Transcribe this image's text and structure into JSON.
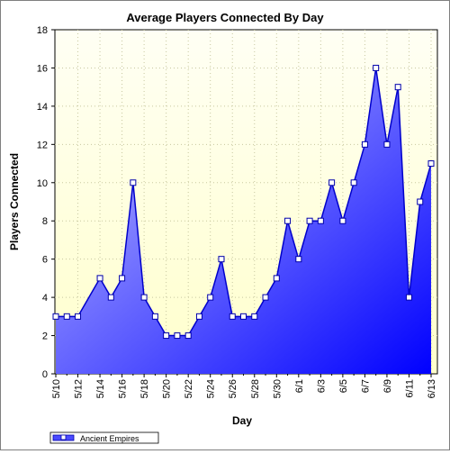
{
  "chart_data": {
    "type": "area",
    "title": "Average Players Connected By Day",
    "xlabel": "Day",
    "ylabel": "Players Connected",
    "ylim": [
      0,
      18
    ],
    "yticks": [
      0,
      2,
      4,
      6,
      8,
      10,
      12,
      14,
      16,
      18
    ],
    "grid": true,
    "legend_position": "bottom-left",
    "x": [
      "5/10",
      "5/11",
      "5/12",
      "5/13",
      "5/14",
      "5/15",
      "5/16",
      "5/17",
      "5/18",
      "5/19",
      "5/20",
      "5/21",
      "5/22",
      "5/23",
      "5/24",
      "5/25",
      "5/26",
      "5/27",
      "5/28",
      "5/29",
      "5/30",
      "5/31",
      "6/1",
      "6/2",
      "6/3",
      "6/4",
      "6/5",
      "6/6",
      "6/7",
      "6/8",
      "6/9",
      "6/10",
      "6/11",
      "6/12",
      "6/13"
    ],
    "xtick_labels": [
      "5/10",
      "5/12",
      "5/14",
      "5/16",
      "5/18",
      "5/20",
      "5/22",
      "5/24",
      "5/26",
      "5/28",
      "5/30",
      "6/1",
      "6/3",
      "6/5",
      "6/7",
      "6/9",
      "6/11",
      "6/13"
    ],
    "series": [
      {
        "name": "Ancient Empires",
        "color": "#0000ff",
        "values": [
          3,
          3,
          3,
          null,
          5,
          4,
          5,
          10,
          4,
          3,
          2,
          2,
          2,
          3,
          4,
          6,
          3,
          3,
          3,
          4,
          5,
          8,
          6,
          8,
          8,
          10,
          8,
          10,
          12,
          16,
          12,
          15,
          4,
          9,
          11
        ]
      }
    ],
    "colors": {
      "plot_bg_top": "#fffff0",
      "plot_bg_bottom": "#ffffcc",
      "area_light": "#b0b0ff",
      "area_dark": "#0000ff",
      "line": "#0000cc",
      "grid": "#c8c8a0"
    }
  }
}
